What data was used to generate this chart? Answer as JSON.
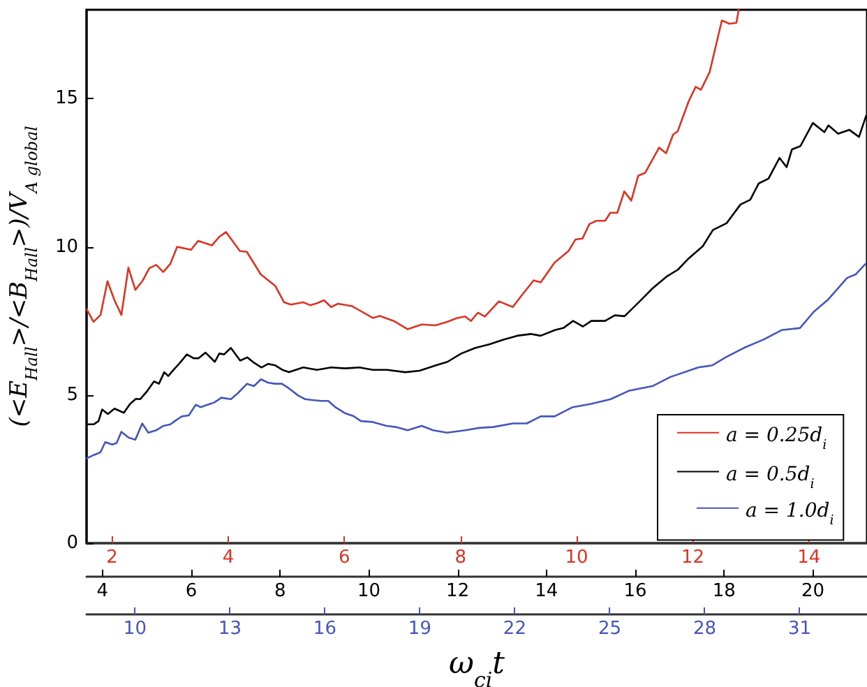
{
  "chart_data": [
    {
      "type": "line",
      "ylabel": "(<E$_{Hall}$>/<B$_{Hall}$>)/V$_{A global}$",
      "xlim": [
        1.56,
        15.0
      ],
      "xticks": [
        2,
        4,
        6,
        8,
        10,
        12,
        14
      ],
      "x2lim": [
        3.64,
        21.22
      ],
      "x2ticks": [
        4,
        6,
        8,
        10,
        12,
        14,
        16,
        18,
        20
      ],
      "ylim": [
        0,
        18
      ],
      "yticks": [
        0,
        5,
        10,
        15
      ],
      "legend": "bottom right",
      "marker": "none",
      "line_style": "solid",
      "series": [
        {
          "name": "a = 0.25d$_{i}$",
          "color": "#dd3322",
          "x": [
            1.56,
            1.68,
            1.8,
            1.92,
            2.04,
            2.16,
            2.28,
            2.4,
            2.52,
            2.64,
            2.76,
            2.88,
            3.0,
            3.12,
            3.36,
            3.48,
            3.72,
            3.84,
            3.96,
            4.2,
            4.32,
            4.56,
            4.81,
            4.96,
            5.08,
            5.29,
            5.41,
            5.53,
            5.65,
            5.77,
            5.89,
            6.13,
            6.49,
            6.61,
            6.85,
            7.09,
            7.33,
            7.57,
            7.77,
            7.94,
            8.08,
            8.18,
            8.3,
            8.42,
            8.66,
            8.9,
            9.04,
            9.26,
            9.38,
            9.62,
            9.86,
            9.98,
            10.1,
            10.22,
            10.34,
            10.49,
            10.58,
            10.7,
            10.82,
            10.94,
            11.06,
            11.18,
            11.42,
            11.54,
            11.66,
            11.74,
            11.93,
            12.05,
            12.14,
            12.29,
            12.5,
            12.63,
            12.75,
            12.79
          ],
          "values": [
            7.9,
            7.47,
            7.7,
            8.84,
            8.2,
            7.7,
            9.3,
            8.55,
            8.84,
            9.28,
            9.39,
            9.15,
            9.42,
            10.0,
            9.9,
            10.2,
            10.05,
            10.33,
            10.5,
            9.86,
            9.83,
            9.07,
            8.68,
            8.13,
            8.05,
            8.13,
            8.03,
            8.1,
            8.2,
            7.97,
            8.08,
            8.0,
            7.6,
            7.67,
            7.5,
            7.22,
            7.38,
            7.35,
            7.47,
            7.6,
            7.65,
            7.5,
            7.78,
            7.65,
            8.16,
            7.97,
            8.33,
            8.87,
            8.8,
            9.47,
            9.86,
            10.25,
            10.28,
            10.77,
            10.88,
            10.88,
            11.15,
            11.15,
            11.87,
            11.56,
            12.4,
            12.5,
            13.35,
            13.16,
            13.79,
            13.9,
            14.92,
            15.4,
            15.3,
            15.9,
            17.64,
            17.53,
            17.56,
            18
          ]
        },
        {
          "name": "a = 0.5d$_{i}$",
          "color": "#000000",
          "axis": "x2",
          "x": [
            3.64,
            3.8,
            3.91,
            3.99,
            4.12,
            4.27,
            4.48,
            4.62,
            4.75,
            4.85,
            5.01,
            5.16,
            5.27,
            5.39,
            5.48,
            5.6,
            5.74,
            5.9,
            6.05,
            6.16,
            6.32,
            6.53,
            6.63,
            6.74,
            6.89,
            7.1,
            7.26,
            7.42,
            7.58,
            7.73,
            7.89,
            8.05,
            8.2,
            8.52,
            8.83,
            9.15,
            9.46,
            9.78,
            10.09,
            10.41,
            10.82,
            11.14,
            11.51,
            11.77,
            12.08,
            12.4,
            12.71,
            13.03,
            13.34,
            13.65,
            13.87,
            14.19,
            14.38,
            14.6,
            14.82,
            15.01,
            15.32,
            15.54,
            15.76,
            16.08,
            16.39,
            16.7,
            16.96,
            17.21,
            17.52,
            17.75,
            18.06,
            18.37,
            18.59,
            18.78,
            19.0,
            19.25,
            19.41,
            19.53,
            19.72,
            20.0,
            20.26,
            20.35,
            20.57,
            20.82,
            21.04,
            21.2
          ],
          "values": [
            4.01,
            4.01,
            4.12,
            4.51,
            4.36,
            4.54,
            4.4,
            4.7,
            4.87,
            4.86,
            5.14,
            5.46,
            5.38,
            5.77,
            5.64,
            5.85,
            6.08,
            6.37,
            6.24,
            6.24,
            6.43,
            6.12,
            6.4,
            6.37,
            6.59,
            6.16,
            6.27,
            6.08,
            5.93,
            6.05,
            6.0,
            5.85,
            5.77,
            5.93,
            5.85,
            5.93,
            5.9,
            5.93,
            5.85,
            5.85,
            5.77,
            5.82,
            6.0,
            6.12,
            6.4,
            6.59,
            6.71,
            6.87,
            7.0,
            7.06,
            7.0,
            7.19,
            7.26,
            7.5,
            7.31,
            7.5,
            7.5,
            7.69,
            7.66,
            8.13,
            8.6,
            8.99,
            9.23,
            9.62,
            10.02,
            10.57,
            10.8,
            11.43,
            11.59,
            12.14,
            12.3,
            13.0,
            12.69,
            13.29,
            13.4,
            14.18,
            13.87,
            14.1,
            13.82,
            13.95,
            13.71,
            14.42
          ]
        }
      ]
    },
    {
      "type": "line",
      "xlabel": "ω$_{ci}$t",
      "xlim": [
        8.47,
        33.13
      ],
      "xticks": [
        10,
        13,
        16,
        19,
        22,
        25,
        28,
        31
      ],
      "ylim": [
        0,
        18
      ],
      "tick_labels": "x",
      "legend": "bottom right",
      "marker": "none",
      "line_style": "solid",
      "series": [
        {
          "name": "a = 1.0d$_{i}$",
          "color": "#4455bb",
          "x": [
            8.47,
            8.69,
            8.91,
            9.06,
            9.28,
            9.42,
            9.57,
            9.79,
            10.01,
            10.23,
            10.42,
            10.67,
            10.9,
            11.12,
            11.26,
            11.48,
            11.7,
            11.92,
            12.07,
            12.29,
            12.51,
            12.73,
            13.03,
            13.25,
            13.54,
            13.76,
            13.98,
            14.2,
            14.42,
            14.64,
            14.87,
            15.16,
            15.38,
            15.6,
            15.89,
            16.11,
            16.33,
            16.63,
            16.92,
            17.14,
            17.51,
            17.95,
            18.24,
            18.61,
            19.06,
            19.42,
            19.86,
            20.44,
            20.88,
            21.32,
            21.94,
            22.38,
            22.82,
            23.26,
            23.83,
            24.41,
            25.03,
            25.6,
            26.35,
            26.92,
            27.8,
            28.24,
            28.66,
            29.24,
            29.86,
            30.43,
            31.01,
            31.45,
            31.89,
            32.5,
            32.77,
            33.08
          ],
          "values": [
            2.86,
            2.97,
            3.07,
            3.41,
            3.33,
            3.38,
            3.76,
            3.57,
            3.49,
            4.04,
            3.73,
            3.81,
            3.96,
            4.01,
            4.12,
            4.28,
            4.31,
            4.67,
            4.59,
            4.67,
            4.75,
            4.91,
            4.86,
            5.06,
            5.38,
            5.3,
            5.53,
            5.42,
            5.38,
            5.38,
            5.22,
            4.98,
            4.86,
            4.83,
            4.8,
            4.8,
            4.59,
            4.39,
            4.28,
            4.12,
            4.09,
            3.96,
            3.92,
            3.81,
            3.96,
            3.81,
            3.73,
            3.81,
            3.89,
            3.92,
            4.04,
            4.04,
            4.28,
            4.28,
            4.59,
            4.7,
            4.86,
            5.14,
            5.3,
            5.61,
            5.93,
            6.0,
            6.27,
            6.59,
            6.87,
            7.19,
            7.26,
            7.81,
            8.21,
            8.95,
            9.07,
            9.42
          ]
        }
      ]
    }
  ]
}
